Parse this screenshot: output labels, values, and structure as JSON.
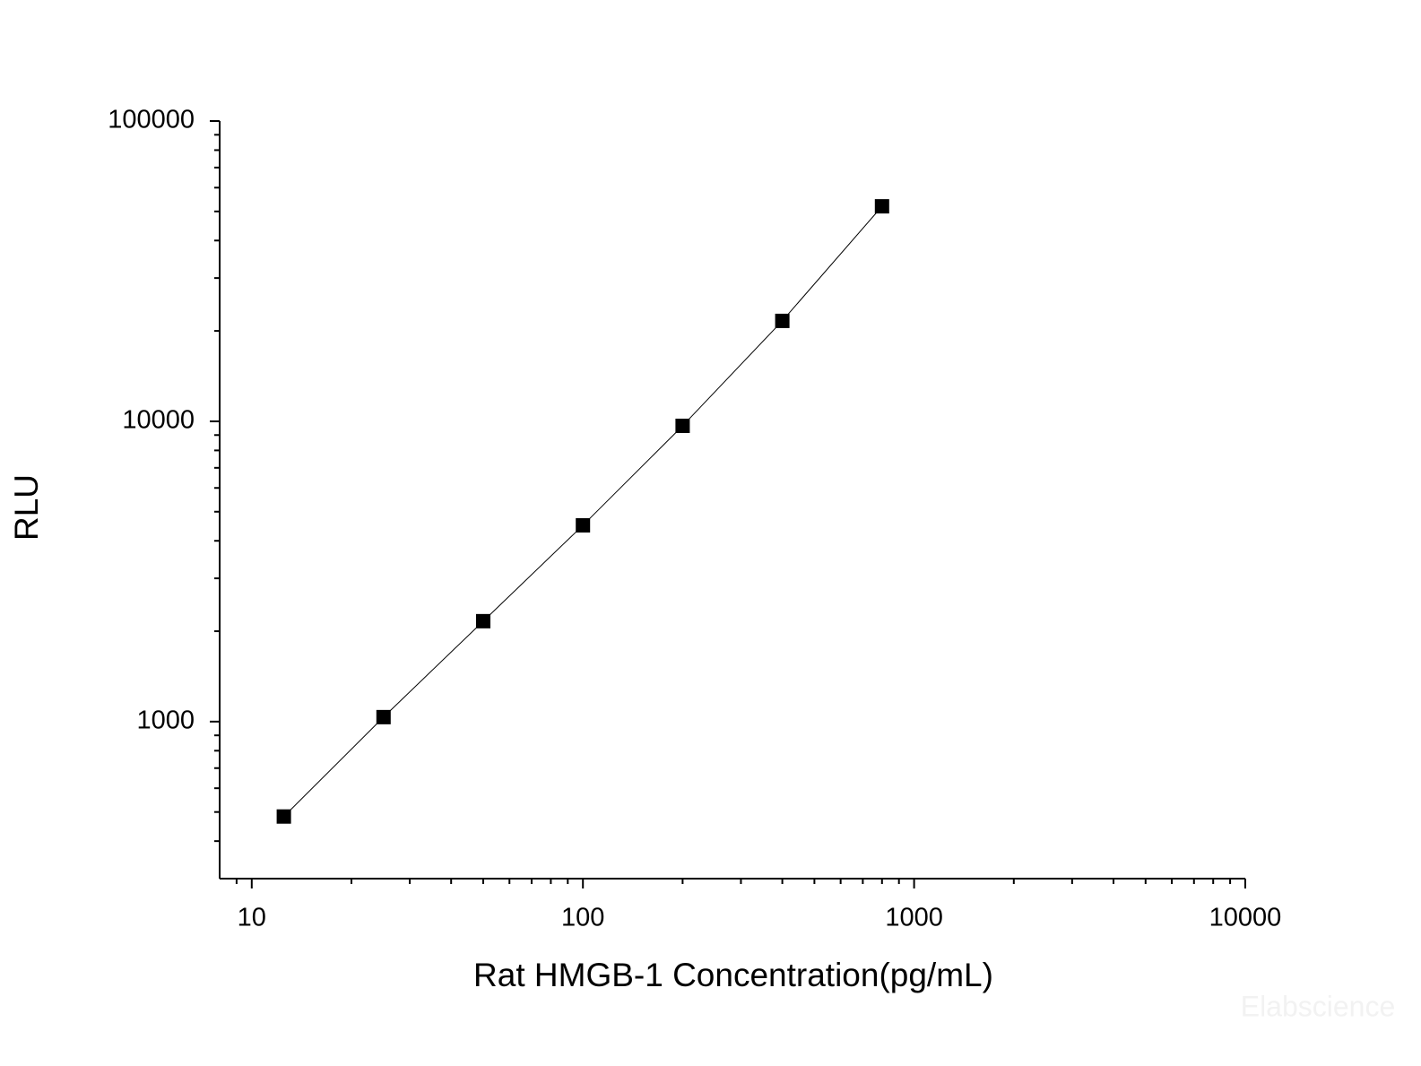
{
  "chart_data": {
    "type": "line",
    "xlabel": "Rat HMGB-1 Concentration(pg/mL)",
    "ylabel": "RLU",
    "watermark": "Elabscience",
    "xscale": "log",
    "yscale": "log",
    "xlim": [
      8,
      10000
    ],
    "ylim": [
      300,
      100000
    ],
    "xticks": [
      10,
      100,
      1000,
      10000
    ],
    "yticks": [
      1000,
      10000,
      100000
    ],
    "xminorticks": [
      9,
      20,
      30,
      40,
      50,
      60,
      70,
      80,
      90,
      200,
      300,
      400,
      500,
      600,
      700,
      800,
      900,
      2000,
      3000,
      4000,
      5000,
      6000,
      7000,
      8000,
      9000
    ],
    "yminorticks": [
      400,
      500,
      600,
      700,
      800,
      900,
      2000,
      3000,
      4000,
      5000,
      6000,
      7000,
      8000,
      9000,
      20000,
      30000,
      40000,
      50000,
      60000,
      70000,
      80000,
      90000
    ],
    "x": [
      12.5,
      25,
      50,
      100,
      200,
      400,
      800
    ],
    "series": [
      {
        "color": "#000000",
        "marker": "square",
        "values": [
          483,
          1035,
          2160,
          4505,
          9660,
          21600,
          52000
        ]
      }
    ]
  }
}
